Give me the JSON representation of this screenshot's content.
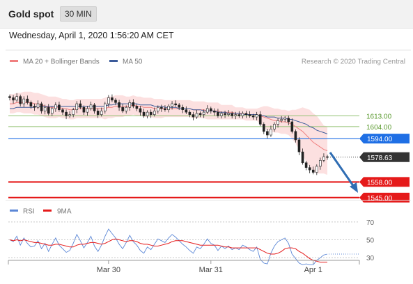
{
  "header": {
    "title": "Gold spot",
    "period": "30 MIN"
  },
  "date_line": "Wednesday, April 1, 2020 1:56:20 AM CET",
  "colors": {
    "ma20": "#f08080",
    "band": "#fbd5d5",
    "ma50": "#3b5b9a",
    "support_resistance": "#90c070",
    "pivot": "#1f6fe5",
    "target": "#e51a1a",
    "last": "#333333",
    "rsi": "#5b87d6",
    "rsi_ma": "#e51a1a",
    "arrow": "#2f6db3"
  },
  "chart_data": [
    {
      "type": "candlestick",
      "legend": [
        {
          "label": "MA 20 + Bollinger Bands",
          "color": "#f08080"
        },
        {
          "label": "MA 50",
          "color": "#3b5b9a"
        }
      ],
      "credit": "Research © 2020 Trading Central",
      "ylim": [
        1538,
        1656
      ],
      "levels": [
        {
          "label": "1613.00",
          "value": 1613.0,
          "kind": "resistance",
          "style": "text-green"
        },
        {
          "label": "1604.00",
          "value": 1604.0,
          "kind": "resistance",
          "style": "text-green"
        },
        {
          "label": "1594.00",
          "value": 1594.0,
          "kind": "pivot",
          "style": "box-blue"
        },
        {
          "label": "1578.63",
          "value": 1578.63,
          "kind": "last",
          "style": "box-dark"
        },
        {
          "label": "1558.00",
          "value": 1558.0,
          "kind": "support",
          "style": "box-red"
        },
        {
          "label": "1545.00",
          "value": 1545.0,
          "kind": "support",
          "style": "box-red"
        }
      ],
      "x_ticks": [
        "Mar 30",
        "Mar 31",
        "Apr 1"
      ],
      "close": [
        1628,
        1626,
        1629,
        1623,
        1627,
        1624,
        1621,
        1620,
        1623,
        1617,
        1620,
        1615,
        1619,
        1622,
        1618,
        1616,
        1613,
        1614,
        1618,
        1623,
        1620,
        1616,
        1619,
        1622,
        1617,
        1614,
        1617,
        1623,
        1628,
        1626,
        1624,
        1620,
        1617,
        1620,
        1624,
        1621,
        1619,
        1616,
        1613,
        1616,
        1614,
        1617,
        1620,
        1619,
        1618,
        1621,
        1623,
        1622,
        1620,
        1618,
        1616,
        1614,
        1612,
        1615,
        1614,
        1616,
        1619,
        1617,
        1616,
        1613,
        1615,
        1614,
        1615,
        1613,
        1614,
        1613,
        1615,
        1614,
        1613,
        1612,
        1614,
        1606,
        1600,
        1597,
        1602,
        1606,
        1609,
        1610,
        1611,
        1608,
        1600,
        1593,
        1583,
        1574,
        1570,
        1568,
        1566,
        1571,
        1576,
        1579,
        1578.63
      ],
      "ma20": [
        1623,
        1623,
        1624,
        1624,
        1624,
        1624,
        1624,
        1623,
        1623,
        1622,
        1621,
        1620,
        1620,
        1620,
        1620,
        1619,
        1619,
        1618,
        1618,
        1619,
        1619,
        1619,
        1619,
        1619,
        1619,
        1619,
        1619,
        1619,
        1620,
        1620,
        1621,
        1621,
        1621,
        1621,
        1621,
        1622,
        1621,
        1621,
        1620,
        1620,
        1620,
        1619,
        1619,
        1619,
        1619,
        1619,
        1619,
        1619,
        1619,
        1619,
        1619,
        1619,
        1618,
        1618,
        1618,
        1618,
        1617,
        1617,
        1617,
        1617,
        1616,
        1616,
        1616,
        1616,
        1615,
        1615,
        1615,
        1614,
        1614,
        1614,
        1614,
        1613,
        1612,
        1611,
        1610,
        1609,
        1609,
        1608,
        1608,
        1607,
        1606,
        1604,
        1602,
        1600,
        1597,
        1594,
        1591,
        1589,
        1587,
        1585,
        1584
      ],
      "bb_width": [
        8,
        8,
        8,
        8,
        9,
        9,
        9,
        9,
        9,
        9,
        9,
        9,
        9,
        9,
        8,
        8,
        8,
        8,
        8,
        8,
        8,
        8,
        8,
        8,
        8,
        8,
        8,
        9,
        9,
        9,
        9,
        9,
        9,
        8,
        8,
        8,
        8,
        8,
        8,
        8,
        8,
        8,
        8,
        8,
        7,
        7,
        7,
        7,
        7,
        7,
        7,
        7,
        7,
        7,
        7,
        7,
        7,
        7,
        7,
        7,
        6,
        6,
        6,
        6,
        5,
        5,
        5,
        5,
        5,
        5,
        5,
        7,
        9,
        10,
        10,
        10,
        10,
        10,
        10,
        10,
        12,
        14,
        17,
        20,
        22,
        24,
        24,
        24,
        22,
        20,
        20
      ],
      "ma50": [
        1619,
        1619,
        1620,
        1620,
        1620,
        1620,
        1620,
        1620,
        1621,
        1621,
        1621,
        1621,
        1621,
        1621,
        1621,
        1621,
        1621,
        1621,
        1621,
        1621,
        1621,
        1621,
        1621,
        1621,
        1621,
        1621,
        1621,
        1621,
        1622,
        1622,
        1623,
        1623,
        1623,
        1623,
        1623,
        1623,
        1623,
        1622,
        1622,
        1622,
        1622,
        1621,
        1621,
        1621,
        1620,
        1620,
        1620,
        1620,
        1619,
        1619,
        1619,
        1619,
        1618,
        1618,
        1618,
        1617,
        1617,
        1617,
        1617,
        1616,
        1616,
        1616,
        1615,
        1615,
        1615,
        1615,
        1614,
        1614,
        1614,
        1614,
        1614,
        1613,
        1613,
        1612,
        1612,
        1612,
        1611,
        1611,
        1611,
        1610,
        1610,
        1609,
        1608,
        1607,
        1606,
        1604,
        1603,
        1601,
        1600,
        1599,
        1598
      ]
    },
    {
      "type": "line",
      "legend": [
        {
          "label": "RSI",
          "color": "#5b87d6"
        },
        {
          "label": "9MA",
          "color": "#e51a1a"
        }
      ],
      "ylim": [
        20,
        80
      ],
      "y_ticks": [
        70,
        50,
        30
      ],
      "rsi": [
        50,
        48,
        54,
        44,
        52,
        46,
        42,
        43,
        49,
        40,
        46,
        37,
        45,
        52,
        44,
        40,
        36,
        38,
        46,
        56,
        49,
        41,
        47,
        54,
        43,
        37,
        44,
        54,
        62,
        57,
        52,
        45,
        40,
        47,
        55,
        48,
        44,
        38,
        35,
        42,
        39,
        45,
        51,
        49,
        47,
        52,
        56,
        53,
        49,
        45,
        42,
        38,
        35,
        42,
        40,
        45,
        51,
        46,
        44,
        38,
        43,
        40,
        43,
        39,
        41,
        39,
        44,
        42,
        39,
        37,
        42,
        28,
        24,
        23,
        35,
        43,
        48,
        50,
        52,
        46,
        34,
        29,
        24,
        22,
        23,
        22,
        22,
        27,
        30,
        33,
        34
      ],
      "rsi_ma": [
        50,
        49,
        50,
        49,
        50,
        49,
        48,
        47,
        47,
        46,
        45,
        44,
        44,
        45,
        45,
        44,
        43,
        42,
        42,
        44,
        45,
        45,
        46,
        47,
        47,
        46,
        45,
        46,
        48,
        50,
        51,
        50,
        49,
        48,
        49,
        49,
        48,
        46,
        45,
        45,
        44,
        43,
        43,
        44,
        45,
        46,
        48,
        49,
        49,
        49,
        48,
        47,
        46,
        45,
        44,
        44,
        44,
        44,
        44,
        44,
        43,
        42,
        42,
        41,
        41,
        41,
        41,
        41,
        41,
        41,
        41,
        39,
        37,
        35,
        34,
        34,
        35,
        37,
        40,
        41,
        41,
        40,
        37,
        35,
        32,
        29,
        27,
        26,
        25,
        25,
        25
      ]
    }
  ]
}
